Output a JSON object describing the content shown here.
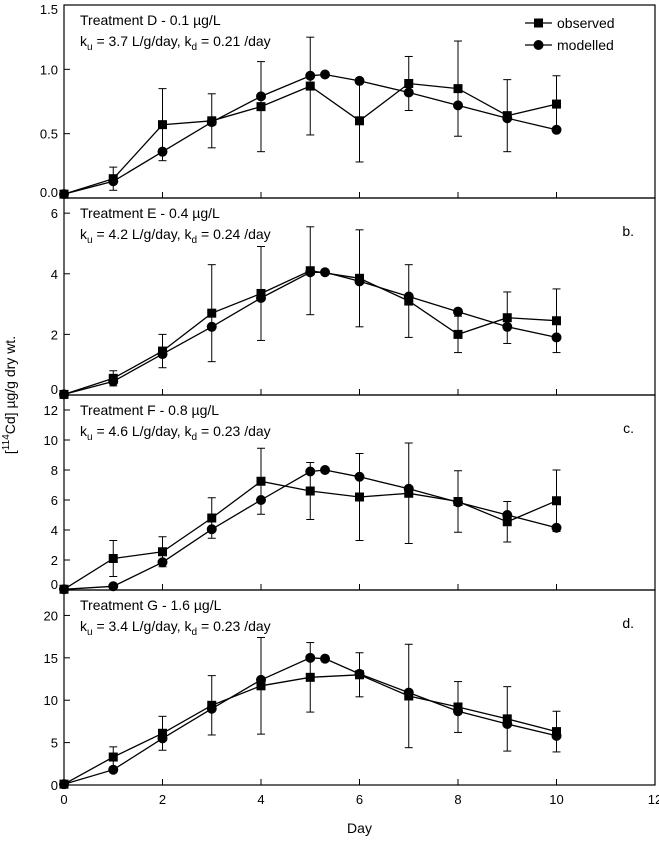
{
  "chart_data": [
    {
      "type": "line",
      "panel_label": "",
      "annotation": {
        "title": "Treatment D - 0.1 µg/L",
        "ku_value": "= 3.7 L/g/day,",
        "kd_value": "= 0.21 /day"
      },
      "ylim": [
        0,
        1.5
      ],
      "yticks": [
        0.0,
        0.5,
        1.0,
        1.5
      ],
      "ytick_labels": [
        "0.0",
        "0.5",
        "1.0",
        "1.5"
      ],
      "series": [
        {
          "name": "observed",
          "x": [
            0,
            1,
            2,
            3,
            4,
            5,
            6,
            7,
            8,
            9,
            10
          ],
          "y": [
            0.03,
            0.15,
            0.57,
            0.6,
            0.71,
            0.87,
            0.6,
            0.89,
            0.85,
            0.64,
            0.73
          ],
          "err": [
            0,
            0.09,
            0.28,
            0.21,
            0.35,
            0.38,
            0.32,
            0.21,
            0.37,
            0.28,
            0.22
          ]
        },
        {
          "name": "modelled",
          "x": [
            0,
            1,
            2,
            3,
            4,
            5,
            5.3,
            6,
            7,
            8,
            9,
            10
          ],
          "y": [
            0.03,
            0.13,
            0.36,
            0.59,
            0.79,
            0.95,
            0.96,
            0.91,
            0.82,
            0.72,
            0.62,
            0.53
          ]
        }
      ]
    },
    {
      "type": "line",
      "panel_label": "b.",
      "annotation": {
        "title": "Treatment E - 0.4 µg/L",
        "ku_value": "= 4.2 L/g/day,",
        "kd_value": "= 0.24 /day"
      },
      "ylim": [
        0,
        6.5
      ],
      "yticks": [
        0,
        2,
        4,
        6
      ],
      "ytick_labels": [
        "0",
        "2",
        "4",
        "6"
      ],
      "series": [
        {
          "name": "observed",
          "x": [
            0,
            1,
            2,
            3,
            4,
            5,
            6,
            7,
            8,
            9,
            10
          ],
          "y": [
            0.02,
            0.55,
            1.45,
            2.7,
            3.35,
            4.1,
            3.85,
            3.1,
            2.0,
            2.55,
            2.45
          ],
          "err": [
            0,
            0.25,
            0.55,
            1.6,
            1.55,
            1.45,
            1.6,
            1.2,
            0.6,
            0.85,
            1.05
          ]
        },
        {
          "name": "modelled",
          "x": [
            0,
            1,
            2,
            3,
            4,
            5,
            5.3,
            6,
            7,
            8,
            9,
            10
          ],
          "y": [
            0.02,
            0.45,
            1.35,
            2.25,
            3.2,
            4.05,
            4.05,
            3.75,
            3.25,
            2.75,
            2.25,
            1.9
          ]
        }
      ]
    },
    {
      "type": "line",
      "panel_label": "c.",
      "annotation": {
        "title": "Treatment F - 0.8 µg/L",
        "ku_value": "= 4.6 L/g/day,",
        "kd_value": "= 0.23 /day"
      },
      "ylim": [
        0,
        13
      ],
      "yticks": [
        0,
        2,
        4,
        6,
        8,
        10,
        12
      ],
      "ytick_labels": [
        "0",
        "2",
        "4",
        "6",
        "8",
        "10",
        "12"
      ],
      "series": [
        {
          "name": "observed",
          "x": [
            0,
            1,
            2,
            3,
            4,
            5,
            6,
            7,
            8,
            9,
            10
          ],
          "y": [
            0.05,
            2.1,
            2.55,
            4.8,
            7.25,
            6.6,
            6.2,
            6.45,
            5.9,
            4.55,
            5.95
          ],
          "err": [
            0,
            1.2,
            1.0,
            1.35,
            2.2,
            1.9,
            2.9,
            3.35,
            2.05,
            1.35,
            2.05
          ]
        },
        {
          "name": "modelled",
          "x": [
            0,
            1,
            2,
            3,
            4,
            5,
            5.3,
            6,
            7,
            8,
            9,
            10
          ],
          "y": [
            0.05,
            0.25,
            1.85,
            4.05,
            6.0,
            7.9,
            8.0,
            7.55,
            6.75,
            5.85,
            5.0,
            4.15
          ]
        }
      ]
    },
    {
      "type": "line",
      "panel_label": "d.",
      "annotation": {
        "title": "Treatment G - 1.6 µg/L",
        "ku_value": "= 3.4 L/g/day,",
        "kd_value": "= 0.23 /day"
      },
      "ylim": [
        0,
        23
      ],
      "yticks": [
        0,
        5,
        10,
        15,
        20
      ],
      "ytick_labels": [
        "0",
        "5",
        "10",
        "15",
        "20"
      ],
      "series": [
        {
          "name": "observed",
          "x": [
            0,
            1,
            2,
            3,
            4,
            5,
            6,
            7,
            8,
            9,
            10
          ],
          "y": [
            0.1,
            3.3,
            6.1,
            9.4,
            11.7,
            12.7,
            13.0,
            10.5,
            9.2,
            7.8,
            6.3
          ],
          "err": [
            0,
            1.2,
            2.0,
            3.5,
            5.7,
            4.1,
            2.6,
            6.1,
            3.0,
            3.8,
            2.4
          ]
        },
        {
          "name": "modelled",
          "x": [
            0,
            1,
            2,
            3,
            4,
            5,
            5.3,
            6,
            7,
            8,
            9,
            10
          ],
          "y": [
            0.1,
            1.8,
            5.5,
            9.0,
            12.4,
            15.0,
            14.9,
            13.1,
            10.9,
            8.7,
            7.2,
            5.8
          ]
        }
      ]
    }
  ],
  "x_axis": {
    "label": "Day",
    "range": [
      0,
      12
    ],
    "ticks": [
      0,
      2,
      4,
      6,
      8,
      10,
      12
    ],
    "tick_labels": [
      "0",
      "2",
      "4",
      "6",
      "8",
      "10",
      "12"
    ]
  },
  "y_axis_label": {
    "open": "[",
    "isotope": "114",
    "rest": "Cd] µg/g dry wt."
  },
  "annotation_parts": {
    "k": "k",
    "u_sub": "u",
    "d_sub": "d",
    "kd_eq_prefix": " k"
  },
  "legend": {
    "position": "top-right",
    "observed": "observed",
    "modelled": "modelled"
  },
  "colors": {
    "line": "#000000",
    "background": "#ffffff"
  }
}
